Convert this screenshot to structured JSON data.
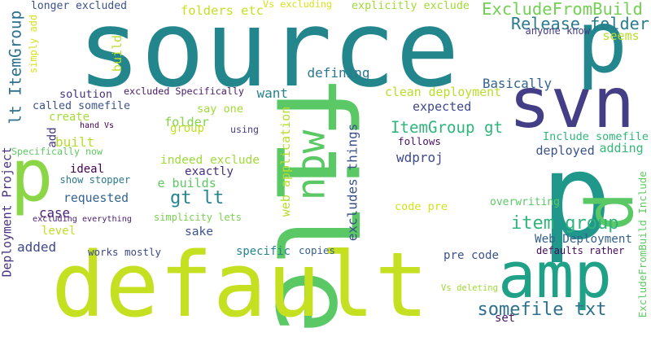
{
  "words": [
    {
      "text": "source",
      "color": "#23868d"
    },
    {
      "text": "file",
      "color": "#5ac864",
      "rot": 90
    },
    {
      "text": "default",
      "color": "#c5e021"
    },
    {
      "text": "amp",
      "color": "#1fa187"
    },
    {
      "text": "svn",
      "color": "#433e85"
    },
    {
      "text": "p",
      "color": "#23878d"
    },
    {
      "text": "p",
      "color": "#8bd646"
    },
    {
      "text": "p",
      "color": "#1f988b"
    },
    {
      "text": "p",
      "color": "#5ac864",
      "rot": 90
    },
    {
      "text": "now",
      "color": "#5ac864",
      "rot": 270
    },
    {
      "text": "ExcludeFromBuild",
      "color": "#74d055"
    },
    {
      "text": "Release folder",
      "color": "#287c8e"
    },
    {
      "text": "item group",
      "color": "#2fb47c"
    },
    {
      "text": "ItemGroup gt",
      "color": "#2fb47c"
    },
    {
      "text": "somefile txt",
      "color": "#2d718e"
    },
    {
      "text": "gt lt",
      "color": "#25858e"
    },
    {
      "text": "lt ItemGroup",
      "color": "#2d708e",
      "rot": 270
    },
    {
      "text": "longer excluded",
      "color": "#3b528b"
    },
    {
      "text": "folders etc",
      "color": "#c5e021"
    },
    {
      "text": "Vs excluding",
      "color": "#d8e219"
    },
    {
      "text": "explicitly exclude",
      "color": "#a2da37"
    },
    {
      "text": "anyone know",
      "color": "#443a83"
    },
    {
      "text": "seems",
      "color": "#b8de29"
    },
    {
      "text": "Basically",
      "color": "#33638d"
    },
    {
      "text": "defining",
      "color": "#2a788e"
    },
    {
      "text": "clean deployment",
      "color": "#b8de29"
    },
    {
      "text": "want",
      "color": "#26828e"
    },
    {
      "text": "solution",
      "color": "#46327e"
    },
    {
      "text": "expected",
      "color": "#3e4989"
    },
    {
      "text": "called somefile",
      "color": "#3b528b"
    },
    {
      "text": "say one",
      "color": "#a2da37"
    },
    {
      "text": "create",
      "color": "#a5db36"
    },
    {
      "text": "folder",
      "color": "#84d44b"
    },
    {
      "text": "group",
      "color": "#c2df23"
    },
    {
      "text": "using",
      "color": "#433e85"
    },
    {
      "text": "built",
      "color": "#b5de2b"
    },
    {
      "text": "follows",
      "color": "#481467"
    },
    {
      "text": "Include somefile",
      "color": "#31b57b"
    },
    {
      "text": "deployed",
      "color": "#3b528b"
    },
    {
      "text": "adding",
      "color": "#35b779"
    },
    {
      "text": "indeed exclude",
      "color": "#9fda3a"
    },
    {
      "text": "ideal",
      "color": "#440154"
    },
    {
      "text": "wdproj",
      "color": "#3e4a89"
    },
    {
      "text": "exactly",
      "color": "#472f7d"
    },
    {
      "text": "e builds",
      "color": "#5ec962"
    },
    {
      "text": "requested",
      "color": "#33638d"
    },
    {
      "text": "code pre",
      "color": "#d2e21b"
    },
    {
      "text": "overwriting",
      "color": "#5ac864"
    },
    {
      "text": "simplicity lets",
      "color": "#7ad151"
    },
    {
      "text": "sake",
      "color": "#3b528b"
    },
    {
      "text": "Web Deployment",
      "color": "#34608d"
    },
    {
      "text": "case",
      "color": "#482475"
    },
    {
      "text": "level",
      "color": "#c2df23"
    },
    {
      "text": "added",
      "color": "#3f4889"
    },
    {
      "text": "works mostly",
      "color": "#3e4989"
    },
    {
      "text": "specific",
      "color": "#26828e"
    },
    {
      "text": "copies",
      "color": "#355f8d"
    },
    {
      "text": "pre code",
      "color": "#3b528b"
    },
    {
      "text": "defaults rather",
      "color": "#46085c"
    },
    {
      "text": "set",
      "color": "#471365"
    },
    {
      "text": "Vs deleting",
      "color": "#a0da39"
    },
    {
      "text": "excluding everything",
      "color": "#481c6e"
    },
    {
      "text": "show stopper",
      "color": "#2a788e"
    },
    {
      "text": "excluded Specifically",
      "color": "#48186a"
    },
    {
      "text": "hand Vs",
      "color": "#440154"
    },
    {
      "text": "Specifically now",
      "color": "#5ec962"
    },
    {
      "text": "simply add",
      "color": "#d8e219",
      "rot": 270
    },
    {
      "text": "build",
      "color": "#b8de29",
      "rot": 270
    },
    {
      "text": "add",
      "color": "#46327e",
      "rot": 270
    },
    {
      "text": "web application",
      "color": "#b5de2b",
      "rot": 270
    },
    {
      "text": "excludes things",
      "color": "#3b528b",
      "rot": 270
    },
    {
      "text": "Deployment Project",
      "color": "#46327e",
      "rot": 270
    },
    {
      "text": "ExcludeFromBuild Include",
      "color": "#5ec962",
      "rot": 270
    }
  ]
}
